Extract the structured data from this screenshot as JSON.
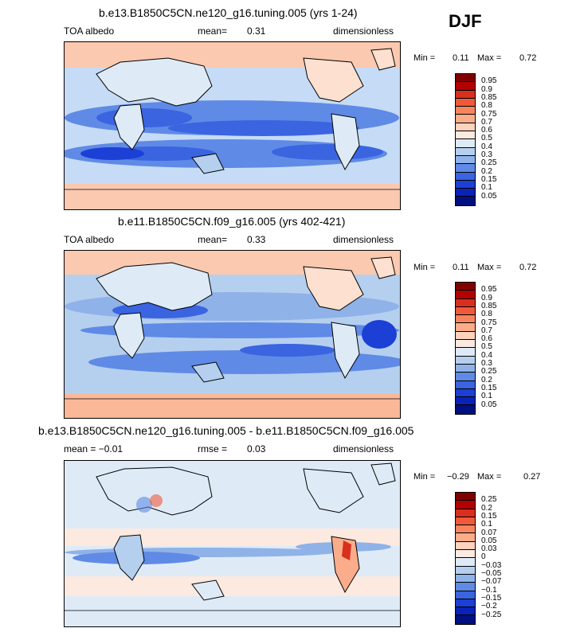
{
  "season": "DJF",
  "panels": [
    {
      "title": "b.e13.B1850C5CN.ne120_g16.tuning.005 (yrs 1-24)",
      "left": "TOA albedo",
      "mid_label": "mean=",
      "mid_value": "0.31",
      "right": "dimensionless",
      "min_label": "Min =",
      "min_value": "0.11",
      "max_label": "Max =",
      "max_value": "0.72",
      "colorbar": {
        "labels": [
          "0.95",
          "0.9",
          "0.85",
          "0.8",
          "0.75",
          "0.7",
          "0.6",
          "0.5",
          "0.4",
          "0.3",
          "0.25",
          "0.2",
          "0.15",
          "0.1",
          "0.05"
        ],
        "colors": [
          "#800000",
          "#b30000",
          "#d7301f",
          "#ef5a3a",
          "#f6855e",
          "#fbad8b",
          "#fdd3bd",
          "#fce9df",
          "#deebf7",
          "#b5cfee",
          "#8fb2e8",
          "#5f8ae6",
          "#3a64e0",
          "#1c3fd6",
          "#0a22b8",
          "#001080"
        ]
      }
    },
    {
      "title": "b.e11.B1850C5CN.f09_g16.005 (yrs 402-421)",
      "left": "TOA albedo",
      "mid_label": "mean=",
      "mid_value": "0.33",
      "right": "dimensionless",
      "min_label": "Min =",
      "min_value": "0.11",
      "max_label": "Max =",
      "max_value": "0.72",
      "colorbar": {
        "labels": [
          "0.95",
          "0.9",
          "0.85",
          "0.8",
          "0.75",
          "0.7",
          "0.6",
          "0.5",
          "0.4",
          "0.3",
          "0.25",
          "0.2",
          "0.15",
          "0.1",
          "0.05"
        ],
        "colors": [
          "#800000",
          "#b30000",
          "#d7301f",
          "#ef5a3a",
          "#f6855e",
          "#fbad8b",
          "#fdd3bd",
          "#fce9df",
          "#deebf7",
          "#b5cfee",
          "#8fb2e8",
          "#5f8ae6",
          "#3a64e0",
          "#1c3fd6",
          "#0a22b8",
          "#001080"
        ]
      }
    },
    {
      "title": "b.e13.B1850C5CN.ne120_g16.tuning.005 - b.e11.B1850C5CN.f09_g16.005",
      "left": "mean =   −0.01",
      "mid_label": "rmse =",
      "mid_value": "0.03",
      "right": "dimensionless",
      "min_label": "Min =",
      "min_value": "−0.29",
      "max_label": "Max =",
      "max_value": "0.27",
      "colorbar": {
        "labels": [
          "0.25",
          "0.2",
          "0.15",
          "0.1",
          "0.07",
          "0.05",
          "0.03",
          "0",
          "−0.03",
          "−0.05",
          "−0.07",
          "−0.1",
          "−0.15",
          "−0.2",
          "−0.25"
        ],
        "colors": [
          "#800000",
          "#b30000",
          "#d7301f",
          "#ef5a3a",
          "#f6855e",
          "#fbad8b",
          "#fdd3bd",
          "#fce9df",
          "#deebf7",
          "#b5cfee",
          "#8fb2e8",
          "#5f8ae6",
          "#3a64e0",
          "#1c3fd6",
          "#0a22b8",
          "#001080"
        ]
      }
    }
  ]
}
